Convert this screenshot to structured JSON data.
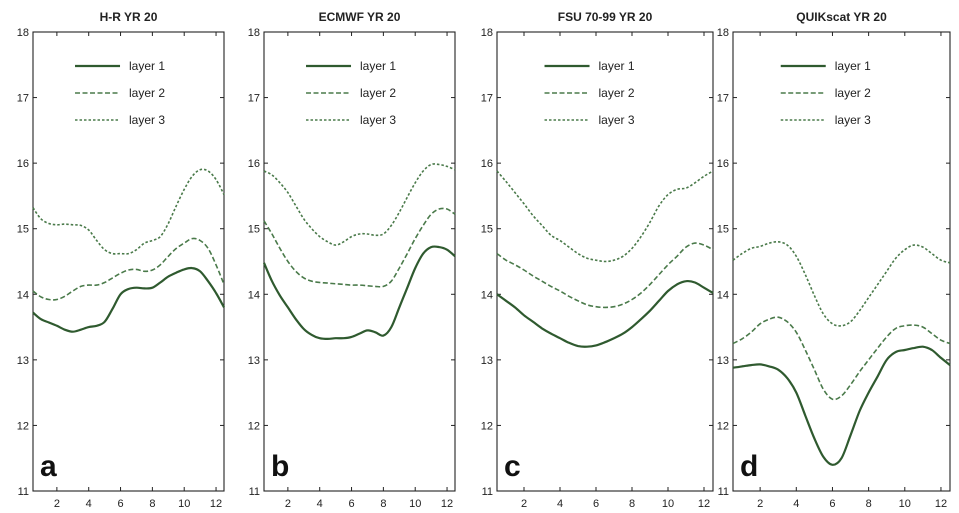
{
  "chart_data": [
    {
      "type": "line",
      "title": "H-R YR 20",
      "panel_label": "a",
      "xlim": [
        0.5,
        12.5
      ],
      "ylim": [
        11,
        18
      ],
      "x_ticks": [
        2,
        4,
        6,
        8,
        10,
        12
      ],
      "y_ticks": [
        11,
        12,
        13,
        14,
        15,
        16,
        17,
        18
      ],
      "legend_position": "top-center",
      "grid": false,
      "x": [
        0.5,
        1,
        1.5,
        2,
        2.5,
        3,
        3.5,
        4,
        4.5,
        5,
        5.5,
        6,
        6.5,
        7,
        7.5,
        8,
        8.5,
        9,
        9.5,
        10,
        10.5,
        11,
        11.5,
        12,
        12.5
      ],
      "series": [
        {
          "name": "layer 1",
          "style": "solid",
          "color": "#2f5a2f",
          "values": [
            13.72,
            13.62,
            13.57,
            13.52,
            13.46,
            13.43,
            13.46,
            13.5,
            13.52,
            13.58,
            13.78,
            14.0,
            14.08,
            14.1,
            14.09,
            14.1,
            14.18,
            14.27,
            14.33,
            14.38,
            14.4,
            14.35,
            14.2,
            14.02,
            13.8
          ]
        },
        {
          "name": "layer 2",
          "style": "dashed",
          "color": "#4a7a4a",
          "values": [
            14.05,
            13.96,
            13.92,
            13.92,
            13.97,
            14.05,
            14.12,
            14.14,
            14.14,
            14.18,
            14.25,
            14.32,
            14.37,
            14.38,
            14.35,
            14.37,
            14.45,
            14.58,
            14.7,
            14.78,
            14.85,
            14.82,
            14.7,
            14.45,
            14.15
          ]
        },
        {
          "name": "layer 3",
          "style": "dotted",
          "color": "#4a7a4a",
          "values": [
            15.32,
            15.15,
            15.08,
            15.06,
            15.07,
            15.06,
            15.05,
            14.98,
            14.82,
            14.68,
            14.62,
            14.62,
            14.62,
            14.68,
            14.78,
            14.82,
            14.88,
            15.08,
            15.35,
            15.6,
            15.8,
            15.9,
            15.88,
            15.75,
            15.52
          ]
        }
      ]
    },
    {
      "type": "line",
      "title": "ECMWF YR 20",
      "panel_label": "b",
      "xlim": [
        0.5,
        12.5
      ],
      "ylim": [
        11,
        18
      ],
      "x_ticks": [
        2,
        4,
        6,
        8,
        10,
        12
      ],
      "y_ticks": [
        11,
        12,
        13,
        14,
        15,
        16,
        17,
        18
      ],
      "legend_position": "top-center",
      "grid": false,
      "x": [
        0.5,
        1,
        1.5,
        2,
        2.5,
        3,
        3.5,
        4,
        4.5,
        5,
        5.5,
        6,
        6.5,
        7,
        7.5,
        8,
        8.5,
        9,
        9.5,
        10,
        10.5,
        11,
        11.5,
        12,
        12.5
      ],
      "series": [
        {
          "name": "layer 1",
          "style": "solid",
          "color": "#2f5a2f",
          "values": [
            14.48,
            14.2,
            13.98,
            13.8,
            13.62,
            13.47,
            13.38,
            13.33,
            13.32,
            13.33,
            13.33,
            13.35,
            13.4,
            13.45,
            13.42,
            13.37,
            13.5,
            13.8,
            14.1,
            14.4,
            14.62,
            14.72,
            14.72,
            14.68,
            14.58
          ]
        },
        {
          "name": "layer 2",
          "style": "dashed",
          "color": "#4a7a4a",
          "values": [
            15.12,
            14.92,
            14.7,
            14.5,
            14.35,
            14.25,
            14.2,
            14.18,
            14.17,
            14.16,
            14.15,
            14.14,
            14.14,
            14.13,
            14.12,
            14.12,
            14.2,
            14.4,
            14.62,
            14.85,
            15.05,
            15.22,
            15.3,
            15.3,
            15.22
          ]
        },
        {
          "name": "layer 3",
          "style": "dotted",
          "color": "#4a7a4a",
          "values": [
            15.88,
            15.82,
            15.7,
            15.55,
            15.35,
            15.15,
            15.0,
            14.88,
            14.8,
            14.75,
            14.8,
            14.88,
            14.92,
            14.92,
            14.9,
            14.92,
            15.05,
            15.25,
            15.48,
            15.7,
            15.88,
            15.98,
            15.98,
            15.95,
            15.9
          ]
        }
      ]
    },
    {
      "type": "line",
      "title": "FSU 70-99 YR 20",
      "panel_label": "c",
      "xlim": [
        0.5,
        12.5
      ],
      "ylim": [
        11,
        18
      ],
      "x_ticks": [
        2,
        4,
        6,
        8,
        10,
        12
      ],
      "y_ticks": [
        11,
        12,
        13,
        14,
        15,
        16,
        17,
        18
      ],
      "legend_position": "top-center",
      "grid": false,
      "x": [
        0.5,
        1,
        1.5,
        2,
        2.5,
        3,
        3.5,
        4,
        4.5,
        5,
        5.5,
        6,
        6.5,
        7,
        7.5,
        8,
        8.5,
        9,
        9.5,
        10,
        10.5,
        11,
        11.5,
        12,
        12.5
      ],
      "series": [
        {
          "name": "layer 1",
          "style": "solid",
          "color": "#2f5a2f",
          "values": [
            14.0,
            13.9,
            13.8,
            13.68,
            13.58,
            13.48,
            13.4,
            13.33,
            13.26,
            13.21,
            13.2,
            13.22,
            13.27,
            13.33,
            13.4,
            13.5,
            13.62,
            13.75,
            13.9,
            14.05,
            14.15,
            14.2,
            14.18,
            14.1,
            14.02
          ]
        },
        {
          "name": "layer 2",
          "style": "dashed",
          "color": "#4a7a4a",
          "values": [
            14.62,
            14.52,
            14.45,
            14.37,
            14.28,
            14.2,
            14.12,
            14.05,
            13.97,
            13.9,
            13.84,
            13.81,
            13.8,
            13.81,
            13.85,
            13.92,
            14.02,
            14.15,
            14.3,
            14.45,
            14.58,
            14.72,
            14.78,
            14.75,
            14.68
          ]
        },
        {
          "name": "layer 3",
          "style": "dotted",
          "color": "#4a7a4a",
          "values": [
            15.88,
            15.72,
            15.55,
            15.38,
            15.2,
            15.05,
            14.9,
            14.82,
            14.72,
            14.62,
            14.55,
            14.52,
            14.5,
            14.52,
            14.58,
            14.7,
            14.88,
            15.1,
            15.35,
            15.52,
            15.6,
            15.62,
            15.7,
            15.8,
            15.88
          ]
        }
      ]
    },
    {
      "type": "line",
      "title": "QUIKscat YR 20",
      "panel_label": "d",
      "xlim": [
        0.5,
        12.5
      ],
      "ylim": [
        11,
        18
      ],
      "x_ticks": [
        2,
        4,
        6,
        8,
        10,
        12
      ],
      "y_ticks": [
        11,
        12,
        13,
        14,
        15,
        16,
        17,
        18
      ],
      "legend_position": "top-center",
      "grid": false,
      "x": [
        0.5,
        1,
        1.5,
        2,
        2.5,
        3,
        3.5,
        4,
        4.5,
        5,
        5.5,
        6,
        6.5,
        7,
        7.5,
        8,
        8.5,
        9,
        9.5,
        10,
        10.5,
        11,
        11.5,
        12,
        12.5
      ],
      "series": [
        {
          "name": "layer 1",
          "style": "solid",
          "color": "#2f5a2f",
          "values": [
            12.88,
            12.9,
            12.92,
            12.93,
            12.9,
            12.85,
            12.72,
            12.5,
            12.15,
            11.8,
            11.52,
            11.4,
            11.5,
            11.85,
            12.22,
            12.5,
            12.75,
            13.0,
            13.12,
            13.15,
            13.18,
            13.2,
            13.15,
            13.03,
            12.92
          ]
        },
        {
          "name": "layer 2",
          "style": "dashed",
          "color": "#4a7a4a",
          "values": [
            13.25,
            13.32,
            13.42,
            13.55,
            13.62,
            13.65,
            13.58,
            13.42,
            13.15,
            12.85,
            12.55,
            12.4,
            12.45,
            12.62,
            12.82,
            13.0,
            13.18,
            13.35,
            13.48,
            13.52,
            13.53,
            13.5,
            13.4,
            13.3,
            13.25
          ]
        },
        {
          "name": "layer 3",
          "style": "dotted",
          "color": "#4a7a4a",
          "values": [
            14.52,
            14.62,
            14.7,
            14.73,
            14.78,
            14.8,
            14.75,
            14.58,
            14.3,
            13.98,
            13.7,
            13.55,
            13.52,
            13.58,
            13.75,
            13.95,
            14.15,
            14.35,
            14.55,
            14.68,
            14.75,
            14.72,
            14.62,
            14.52,
            14.48
          ]
        }
      ]
    }
  ]
}
